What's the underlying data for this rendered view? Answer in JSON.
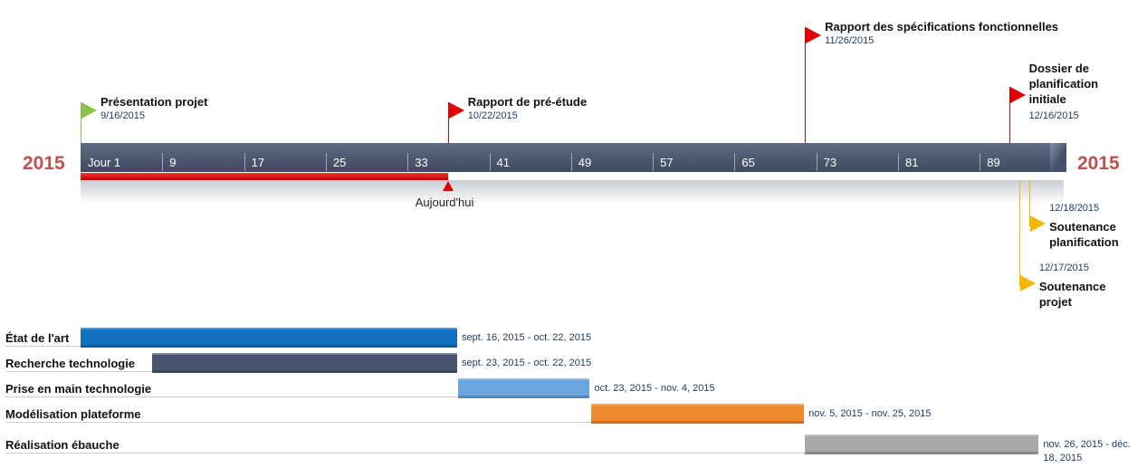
{
  "chart_data": {
    "type": "timeline",
    "year_left": "2015",
    "year_right": "2015",
    "scale_labels": [
      "Jour 1",
      "9",
      "17",
      "25",
      "33",
      "41",
      "49",
      "57",
      "65",
      "73",
      "81",
      "89"
    ],
    "today_label": "Aujourd'hui",
    "today_day": 37,
    "milestones": [
      {
        "title": "Présentation projet",
        "date": "9/16/2015",
        "day": 1,
        "color": "#8bc34a",
        "side": "above"
      },
      {
        "title": "Rapport de pré-étude",
        "date": "10/22/2015",
        "day": 37,
        "color": "#e00000",
        "side": "above"
      },
      {
        "title": "Rapport des spécifications fonctionnelles",
        "date": "11/26/2015",
        "day": 72,
        "color": "#e00000",
        "side": "above"
      },
      {
        "title": "Dossier de planification initiale",
        "date": "12/16/2015",
        "day": 92,
        "color": "#e00000",
        "side": "above"
      },
      {
        "title": "Soutenance planification",
        "date": "12/18/2015",
        "day": 94,
        "color": "#f5b800",
        "side": "below"
      },
      {
        "title": "Soutenance projet",
        "date": "12/17/2015",
        "day": 93,
        "color": "#f5b800",
        "side": "below"
      }
    ],
    "tasks": [
      {
        "name": "État de l'art",
        "range": "sept. 16, 2015 - oct. 22, 2015",
        "start_day": 1,
        "end_day": 37,
        "color": "#1170c0"
      },
      {
        "name": "Recherche technologie",
        "range": "sept. 23, 2015 - oct. 22, 2015",
        "start_day": 8,
        "end_day": 37,
        "color": "#4a5670"
      },
      {
        "name": "Prise en main technologie",
        "range": "oct. 23, 2015 - nov. 4, 2015",
        "start_day": 38,
        "end_day": 50,
        "color": "#6aa7e0"
      },
      {
        "name": "Modélisation plateforme",
        "range": "nov. 5, 2015 - nov. 25, 2015",
        "start_day": 51,
        "end_day": 71,
        "color": "#f08a30"
      },
      {
        "name": "Réalisation ébauche",
        "range": "nov. 26, 2015 - déc. 18, 2015",
        "start_day": 72,
        "end_day": 94,
        "color": "#a8a8a8"
      }
    ]
  }
}
